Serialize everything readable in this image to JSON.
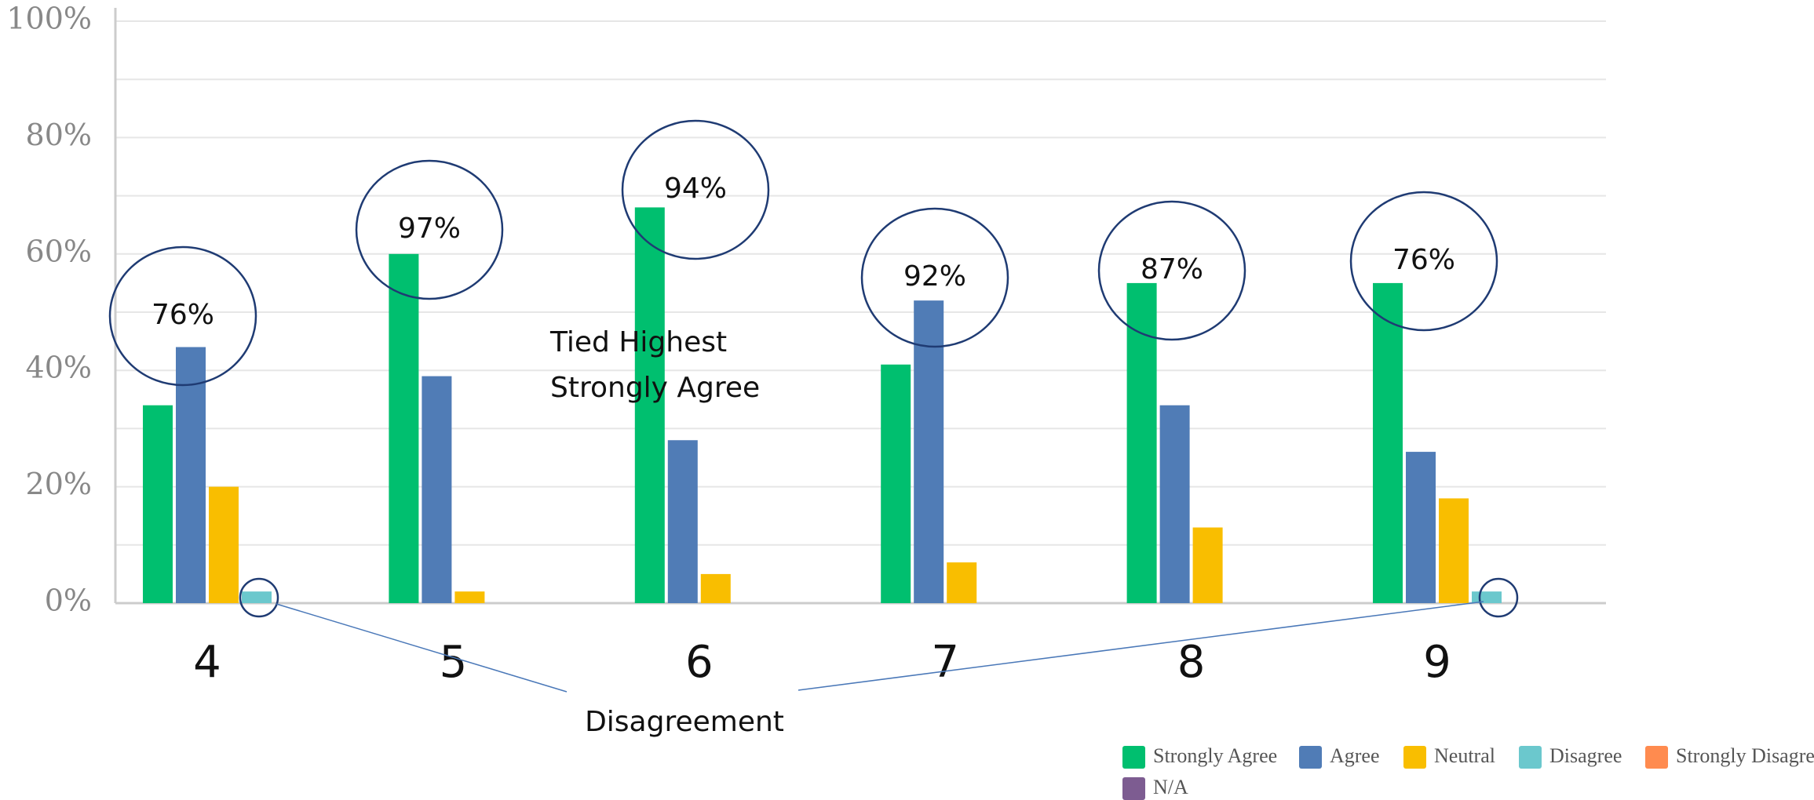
{
  "chart_data": {
    "type": "bar",
    "categories": [
      "4",
      "5",
      "6",
      "7",
      "8",
      "9"
    ],
    "series": [
      {
        "name": "Strongly Agree",
        "color": "#00bf6f",
        "values": [
          34,
          60,
          68,
          41,
          55,
          55
        ]
      },
      {
        "name": "Agree",
        "color": "#507cb6",
        "values": [
          44,
          39,
          28,
          52,
          34,
          26
        ]
      },
      {
        "name": "Neutral",
        "color": "#f9be00",
        "values": [
          20,
          2,
          5,
          7,
          13,
          18
        ]
      },
      {
        "name": "Disagree",
        "color": "#6bc8cd",
        "values": [
          2,
          0,
          0,
          0,
          0,
          2
        ]
      },
      {
        "name": "Strongly Disagree",
        "color": "#ff8b4f",
        "values": [
          0,
          0,
          0,
          0,
          0,
          0
        ]
      },
      {
        "name": "N/A",
        "color": "#7d5c91",
        "values": [
          0,
          0,
          0,
          0,
          0,
          0
        ]
      }
    ],
    "ylim": [
      0,
      100
    ],
    "yticks": [
      {
        "value": 0,
        "label": "0%"
      },
      {
        "value": 20,
        "label": "20%"
      },
      {
        "value": 40,
        "label": "40%"
      },
      {
        "value": 60,
        "label": "60%"
      },
      {
        "value": 80,
        "label": "80%"
      },
      {
        "value": 100,
        "label": "100%"
      }
    ],
    "minor_yticks": [
      10,
      30,
      50,
      70,
      90
    ],
    "grid": true,
    "legend": "bottom-right",
    "annotations": {
      "circled_totals": [
        "76%",
        "97%",
        "94%",
        "92%",
        "87%",
        "76%"
      ],
      "tied_highest": [
        "Tied Highest",
        "Strongly Agree"
      ],
      "disagreement": "Disagreement"
    }
  }
}
